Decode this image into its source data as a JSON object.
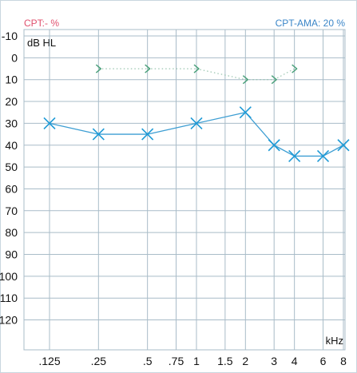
{
  "header": {
    "left_label": "CPT:- %",
    "right_label": "CPT-AMA: 20 %"
  },
  "colors": {
    "left_label": "#e0506e",
    "right_label": "#3a86c8",
    "grid": "#a9bcc8",
    "series_line": "#3d9ed3",
    "x_marker": "#1e9ad6",
    "bone_marker": "#4aa07a",
    "bone_line": "#8fbfa6",
    "frame": "#c9d6df"
  },
  "chart_data": {
    "type": "line",
    "xlabel": "kHz",
    "ylabel": "dB HL",
    "x_scale": "octave",
    "y_inverted": true,
    "ylim": [
      -10,
      125
    ],
    "x_ticks": [
      ".125",
      ".25",
      ".5",
      ".75",
      "1",
      "1.5",
      "2",
      "3",
      "4",
      "6",
      "8"
    ],
    "x_tick_values": [
      0.125,
      0.25,
      0.5,
      0.75,
      1,
      1.5,
      2,
      3,
      4,
      6,
      8
    ],
    "y_ticks": [
      "-10",
      "0",
      "10",
      "20",
      "30",
      "40",
      "50",
      "60",
      "70",
      "80",
      "90",
      "100",
      "110",
      "120"
    ],
    "y_tick_values": [
      -10,
      0,
      10,
      20,
      30,
      40,
      50,
      60,
      70,
      80,
      90,
      100,
      110,
      120
    ],
    "grid": true,
    "series": [
      {
        "marker": "x",
        "line": "solid",
        "points": [
          {
            "x": 0.125,
            "y": 30
          },
          {
            "x": 0.25,
            "y": 35
          },
          {
            "x": 0.5,
            "y": 35
          },
          {
            "x": 1,
            "y": 30
          },
          {
            "x": 2,
            "y": 25
          },
          {
            "x": 3,
            "y": 40
          },
          {
            "x": 4,
            "y": 45
          },
          {
            "x": 6,
            "y": 45
          },
          {
            "x": 8,
            "y": 40
          }
        ]
      },
      {
        "marker": ">",
        "line": "dotted",
        "points": [
          {
            "x": 0.25,
            "y": 5
          },
          {
            "x": 0.5,
            "y": 5
          },
          {
            "x": 1,
            "y": 5
          },
          {
            "x": 2,
            "y": 10
          },
          {
            "x": 3,
            "y": 10
          },
          {
            "x": 4,
            "y": 5
          }
        ]
      }
    ]
  }
}
